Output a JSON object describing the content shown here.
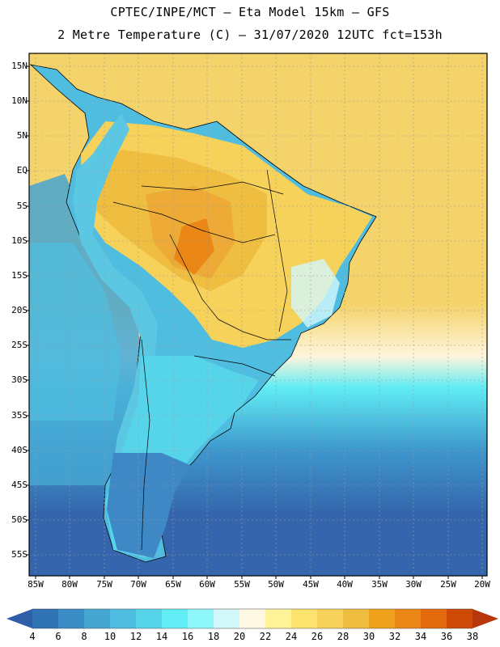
{
  "header": {
    "line1": "CPTEC/INPE/MCT –  Eta Model 15km – GFS",
    "line2": "2 Metre Temperature (C) – 31/07/2020 12UTC fct=153h"
  },
  "axes": {
    "latitudes": [
      "15N",
      "10N",
      "5N",
      "EQ",
      "5S",
      "10S",
      "15S",
      "20S",
      "25S",
      "30S",
      "35S",
      "40S",
      "45S",
      "50S",
      "55S"
    ],
    "longitudes": [
      "85W",
      "80W",
      "75W",
      "70W",
      "65W",
      "60W",
      "55W",
      "50W",
      "45W",
      "40W",
      "35W",
      "30W",
      "25W",
      "20W"
    ]
  },
  "colorbar": {
    "labels": [
      "4",
      "6",
      "8",
      "10",
      "12",
      "14",
      "16",
      "18",
      "20",
      "22",
      "24",
      "26",
      "28",
      "30",
      "32",
      "34",
      "36",
      "38"
    ],
    "colors": [
      "#2f5ea8",
      "#2f73b4",
      "#3a8cc4",
      "#45a6d2",
      "#4fbde0",
      "#56d4ea",
      "#62eef4",
      "#8ff8fb",
      "#d2f7fb",
      "#fff8e4",
      "#fff39a",
      "#fbe36e",
      "#f7d25a",
      "#efbe40",
      "#f0a21c",
      "#ea8716",
      "#e26a0c",
      "#cf4a06",
      "#b8360a"
    ]
  },
  "fields": {
    "ocean_tropical_color": "#f4d36a",
    "ocean_subtropical_color": "#fff5dc",
    "ocean_cold_color": "#60ecf4",
    "ocean_south_color": "#3d97cc",
    "ocean_polar_color": "#3566ad",
    "amazon_color": "#eeaa36",
    "andes_color": "#5bc7e3",
    "patagonia_color": "#3f88c6"
  }
}
